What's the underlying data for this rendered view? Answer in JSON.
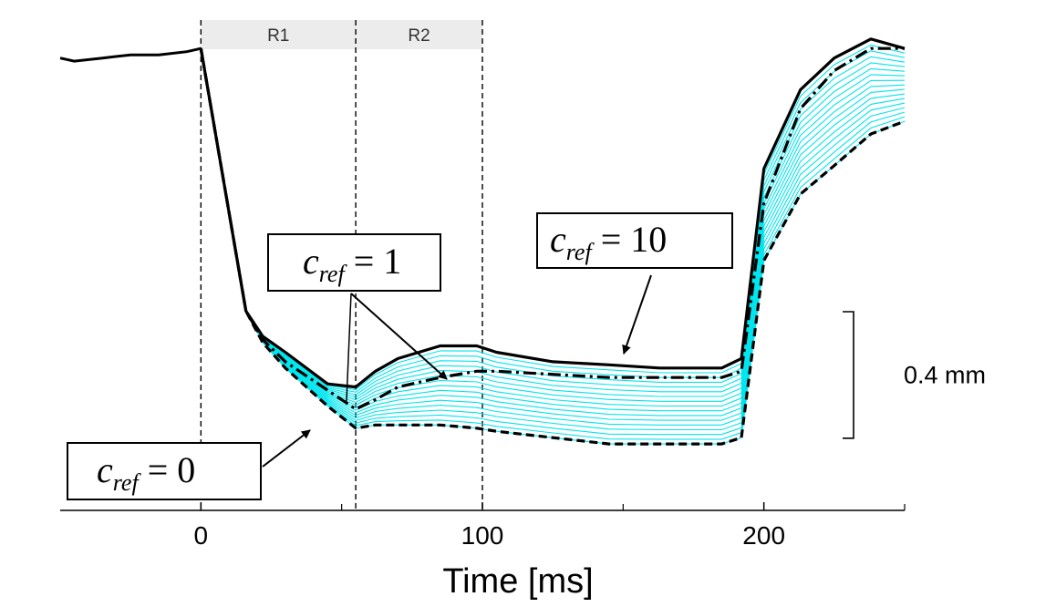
{
  "chart_data": {
    "type": "line",
    "xlabel": "Time [ms]",
    "xlim": [
      -50,
      250
    ],
    "ylim": [
      0.0,
      1.55
    ],
    "x_ticks": [
      0,
      100,
      200
    ],
    "x_minor_ticks": [
      50,
      150,
      250
    ],
    "scale_bar": {
      "label": "0.4 mm",
      "value": 0.4
    },
    "regions": [
      {
        "label": "R1",
        "from": 0,
        "to": 55
      },
      {
        "label": "R2",
        "from": 55,
        "to": 100
      }
    ],
    "vlines": [
      0,
      55,
      100
    ],
    "pre_stimulus": {
      "x": [
        -50,
        -45,
        -35,
        -25,
        -15,
        -5,
        0
      ],
      "y": [
        1.43,
        1.42,
        1.43,
        1.44,
        1.44,
        1.45,
        1.46
      ]
    },
    "x": [
      0,
      16,
      22,
      30,
      45,
      55,
      62,
      70,
      85,
      98,
      105,
      125,
      145,
      163,
      185,
      192,
      200,
      213,
      225,
      238,
      250
    ],
    "series_bounds": [
      {
        "name": "c_ref = 10",
        "style": "solid",
        "y": [
          1.46,
          0.63,
          0.55,
          0.5,
          0.4,
          0.39,
          0.44,
          0.48,
          0.52,
          0.52,
          0.5,
          0.47,
          0.46,
          0.45,
          0.45,
          0.48,
          1.08,
          1.33,
          1.43,
          1.49,
          1.46
        ]
      },
      {
        "name": "c_ref = 1",
        "style": "dashdot",
        "y": [
          1.46,
          0.63,
          0.54,
          0.47,
          0.38,
          0.32,
          0.35,
          0.39,
          0.42,
          0.44,
          0.44,
          0.43,
          0.42,
          0.42,
          0.42,
          0.44,
          0.97,
          1.27,
          1.39,
          1.46,
          1.46
        ]
      },
      {
        "name": "c_ref = 0",
        "style": "dashed",
        "y": [
          1.46,
          0.63,
          0.53,
          0.45,
          0.33,
          0.26,
          0.27,
          0.27,
          0.27,
          0.26,
          0.25,
          0.23,
          0.21,
          0.21,
          0.21,
          0.23,
          0.79,
          1.0,
          1.09,
          1.19,
          1.23
        ]
      }
    ],
    "intermediate_curves": 16,
    "annotations": [
      {
        "id": "c10",
        "sub": "ref",
        "value": "10"
      },
      {
        "id": "c1",
        "sub": "ref",
        "value": "1"
      },
      {
        "id": "c0",
        "sub": "ref",
        "value": "0"
      }
    ],
    "colors": {
      "intermediate": "#00e5ee",
      "bounds": "#000000",
      "region_fill": "#ececec"
    }
  }
}
